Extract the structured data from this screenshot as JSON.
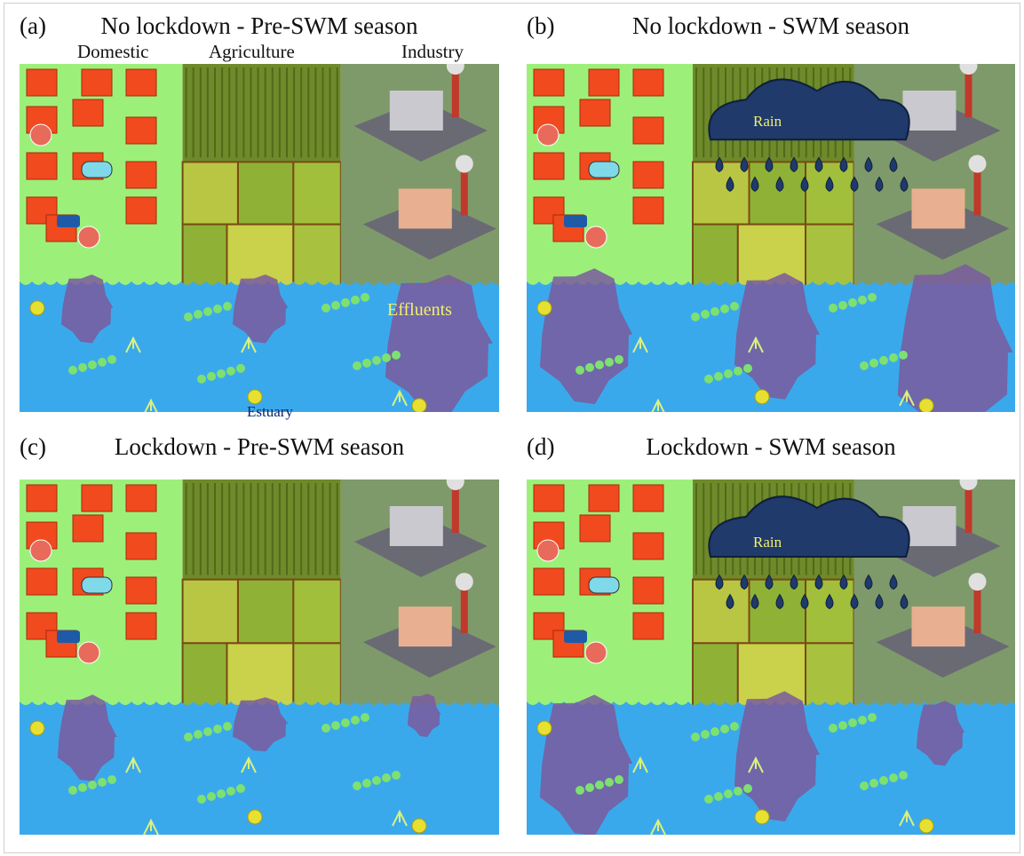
{
  "panels": [
    {
      "letter": "(a)",
      "title": "No lockdown - Pre-SWM season",
      "sectors": [
        "Domestic",
        "Agriculture",
        "Industry"
      ],
      "labels": {
        "effluents": "Effluents",
        "estuary": "Estuary"
      }
    },
    {
      "letter": "(b)",
      "title": "No lockdown - SWM season",
      "rain": "Rain"
    },
    {
      "letter": "(c)",
      "title": "Lockdown - Pre-SWM season"
    },
    {
      "letter": "(d)",
      "title": "Lockdown - SWM season",
      "rain": "Rain"
    }
  ],
  "colors": {
    "land": "#9cf07a",
    "water": "#3aa9ec",
    "effluent": "#7a5a9e",
    "house": "#f04a1e",
    "cloud": "#1f3a6b",
    "rain_text": "#f2f06a",
    "field_dark": "#6e8a2a",
    "field_light": "#c9d24a",
    "industry_ground": "#7e9a6a"
  },
  "icons": [
    "house-icon",
    "tree-icon",
    "pool-icon",
    "car-icon",
    "umbrella-icon",
    "factory-icon",
    "chimney-icon",
    "cloud-icon",
    "raindrop-icon",
    "plankton-chain-icon",
    "copepod-icon"
  ]
}
